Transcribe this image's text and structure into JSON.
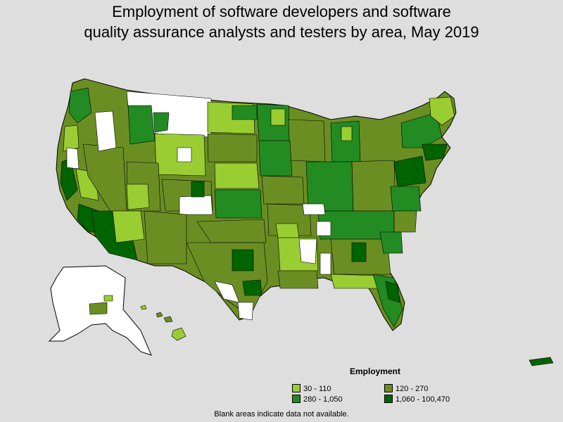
{
  "title_line1": "Employment of software developers and software",
  "title_line2": "quality assurance analysts and testers by area, May 2019",
  "legend": {
    "title": "Employment",
    "items": [
      {
        "label": "30 - 110",
        "color": "#9acd32"
      },
      {
        "label": "120 - 270",
        "color": "#6b8e23"
      },
      {
        "label": "280 - 1,050",
        "color": "#228b22"
      },
      {
        "label": "1,060 - 100,470",
        "color": "#006400"
      }
    ]
  },
  "note": "Blank areas indicate data not available."
}
